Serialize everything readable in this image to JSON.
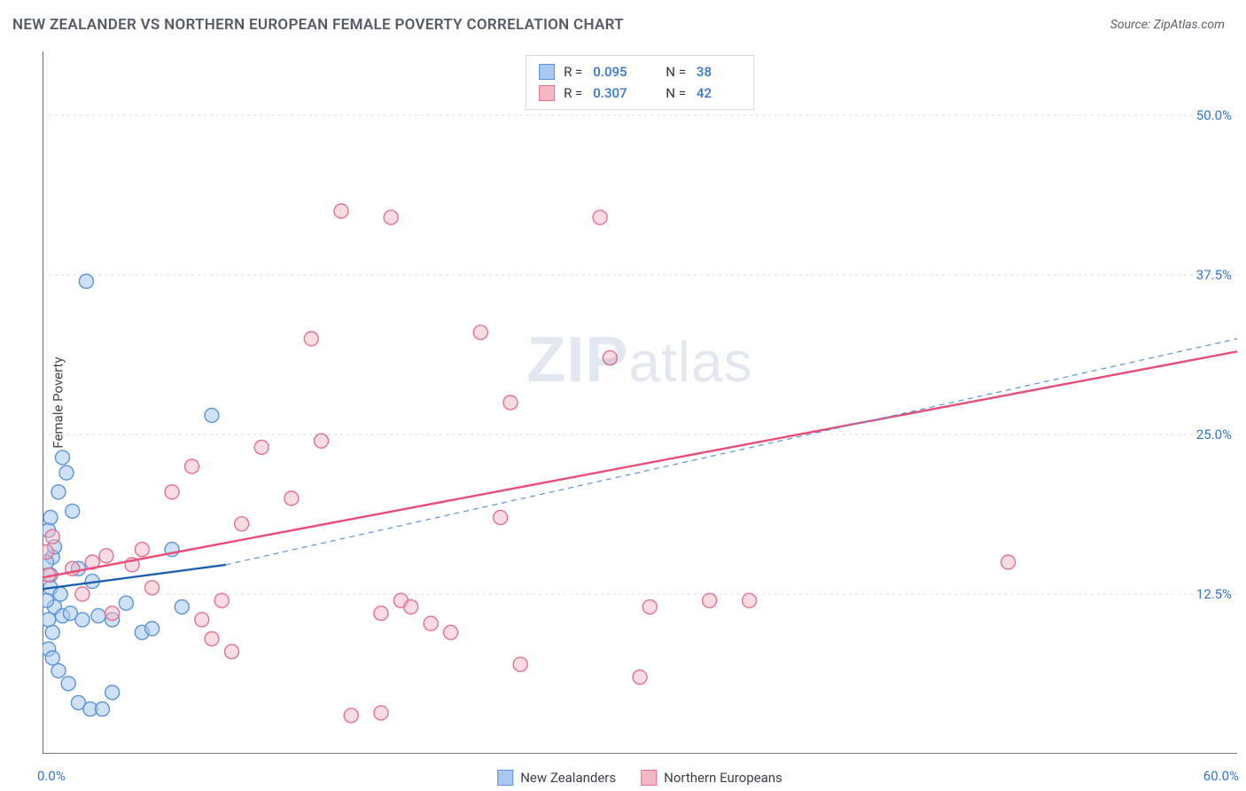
{
  "header": {
    "title": "NEW ZEALANDER VS NORTHERN EUROPEAN FEMALE POVERTY CORRELATION CHART",
    "source": "Source: ZipAtlas.com"
  },
  "chart": {
    "type": "scatter",
    "ylabel": "Female Poverty",
    "watermark_a": "ZIP",
    "watermark_b": "atlas",
    "xlim": [
      0,
      60
    ],
    "ylim": [
      0,
      55
    ],
    "yticks": [
      {
        "v": 12.5,
        "label": "12.5%"
      },
      {
        "v": 25.0,
        "label": "25.0%"
      },
      {
        "v": 37.5,
        "label": "37.5%"
      },
      {
        "v": 50.0,
        "label": "50.0%"
      }
    ],
    "xtick_min_label": "0.0%",
    "xtick_max_label": "60.0%",
    "xticks_minor": [
      5,
      10,
      15,
      20,
      25,
      30
    ],
    "grid_color": "#d9dce1",
    "axis_color": "#434a54",
    "marker_radius": 8,
    "marker_stroke_width": 1.4,
    "series": [
      {
        "key": "nz",
        "name": "New Zealanders",
        "fill": "#a8c8ef",
        "stroke": "#5a93d8",
        "fill_opacity": 0.55,
        "r_value": "0.095",
        "n_value": "38",
        "trend": {
          "x1": 0,
          "y1": 12.9,
          "x2": 9.2,
          "y2": 14.8,
          "color": "#1f5fb0",
          "width": 2.4,
          "dash": "none"
        },
        "trend_ext": {
          "x1": 9.2,
          "y1": 14.8,
          "x2": 60,
          "y2": 32.5,
          "color": "#5a93d8",
          "width": 1.2,
          "dash": "6 5"
        },
        "points": [
          [
            0.3,
            17.5
          ],
          [
            0.5,
            15.4
          ],
          [
            0.4,
            14.0
          ],
          [
            0.6,
            16.2
          ],
          [
            1.5,
            19.0
          ],
          [
            2.2,
            37.0
          ],
          [
            1.0,
            23.2
          ],
          [
            1.2,
            22.0
          ],
          [
            0.8,
            20.5
          ],
          [
            0.4,
            13.0
          ],
          [
            0.6,
            11.5
          ],
          [
            1.0,
            10.8
          ],
          [
            1.4,
            11.0
          ],
          [
            2.0,
            10.5
          ],
          [
            2.8,
            10.8
          ],
          [
            3.5,
            10.5
          ],
          [
            4.2,
            11.8
          ],
          [
            5.0,
            9.5
          ],
          [
            5.5,
            9.8
          ],
          [
            6.5,
            16.0
          ],
          [
            7.0,
            11.5
          ],
          [
            0.3,
            8.2
          ],
          [
            0.5,
            7.5
          ],
          [
            0.8,
            6.5
          ],
          [
            1.3,
            5.5
          ],
          [
            1.8,
            4.0
          ],
          [
            2.4,
            3.5
          ],
          [
            3.0,
            3.5
          ],
          [
            3.5,
            4.8
          ],
          [
            0.2,
            12.0
          ],
          [
            0.3,
            10.5
          ],
          [
            0.5,
            9.5
          ],
          [
            0.2,
            15.0
          ],
          [
            1.8,
            14.5
          ],
          [
            2.5,
            13.5
          ],
          [
            8.5,
            26.5
          ],
          [
            0.4,
            18.5
          ],
          [
            0.9,
            12.5
          ]
        ]
      },
      {
        "key": "ne",
        "name": "Northern Europeans",
        "fill": "#f4b7c6",
        "stroke": "#e6718f",
        "fill_opacity": 0.5,
        "r_value": "0.307",
        "n_value": "42",
        "trend": {
          "x1": 0,
          "y1": 13.8,
          "x2": 60,
          "y2": 31.5,
          "color": "#e94d77",
          "width": 2.4,
          "dash": "none"
        },
        "points": [
          [
            0.2,
            15.8
          ],
          [
            0.3,
            14.0
          ],
          [
            1.5,
            14.5
          ],
          [
            2.5,
            15.0
          ],
          [
            3.2,
            15.5
          ],
          [
            4.5,
            14.8
          ],
          [
            5.0,
            16.0
          ],
          [
            6.5,
            20.5
          ],
          [
            7.5,
            22.5
          ],
          [
            8.0,
            10.5
          ],
          [
            8.5,
            9.0
          ],
          [
            9.0,
            12.0
          ],
          [
            9.5,
            8.0
          ],
          [
            10.0,
            18.0
          ],
          [
            11.0,
            24.0
          ],
          [
            12.5,
            20.0
          ],
          [
            13.5,
            32.5
          ],
          [
            14.0,
            24.5
          ],
          [
            15.0,
            42.5
          ],
          [
            17.5,
            42.0
          ],
          [
            17.0,
            11.0
          ],
          [
            18.0,
            12.0
          ],
          [
            18.5,
            11.5
          ],
          [
            19.5,
            10.2
          ],
          [
            20.5,
            9.5
          ],
          [
            22.0,
            33.0
          ],
          [
            23.5,
            27.5
          ],
          [
            24.0,
            7.0
          ],
          [
            15.5,
            3.0
          ],
          [
            17.0,
            3.2
          ],
          [
            28.0,
            42.0
          ],
          [
            28.5,
            31.0
          ],
          [
            30.0,
            6.0
          ],
          [
            30.5,
            11.5
          ],
          [
            33.5,
            12.0
          ],
          [
            35.5,
            12.0
          ],
          [
            48.5,
            15.0
          ],
          [
            2.0,
            12.5
          ],
          [
            3.5,
            11.0
          ],
          [
            5.5,
            13.0
          ],
          [
            0.5,
            17.0
          ],
          [
            23.0,
            18.5
          ]
        ]
      }
    ],
    "bottom_legend": [
      {
        "swatch_fill": "#a8c8ef",
        "swatch_stroke": "#5a93d8",
        "label": "New Zealanders"
      },
      {
        "swatch_fill": "#f4b7c6",
        "swatch_stroke": "#e6718f",
        "label": "Northern Europeans"
      }
    ]
  }
}
